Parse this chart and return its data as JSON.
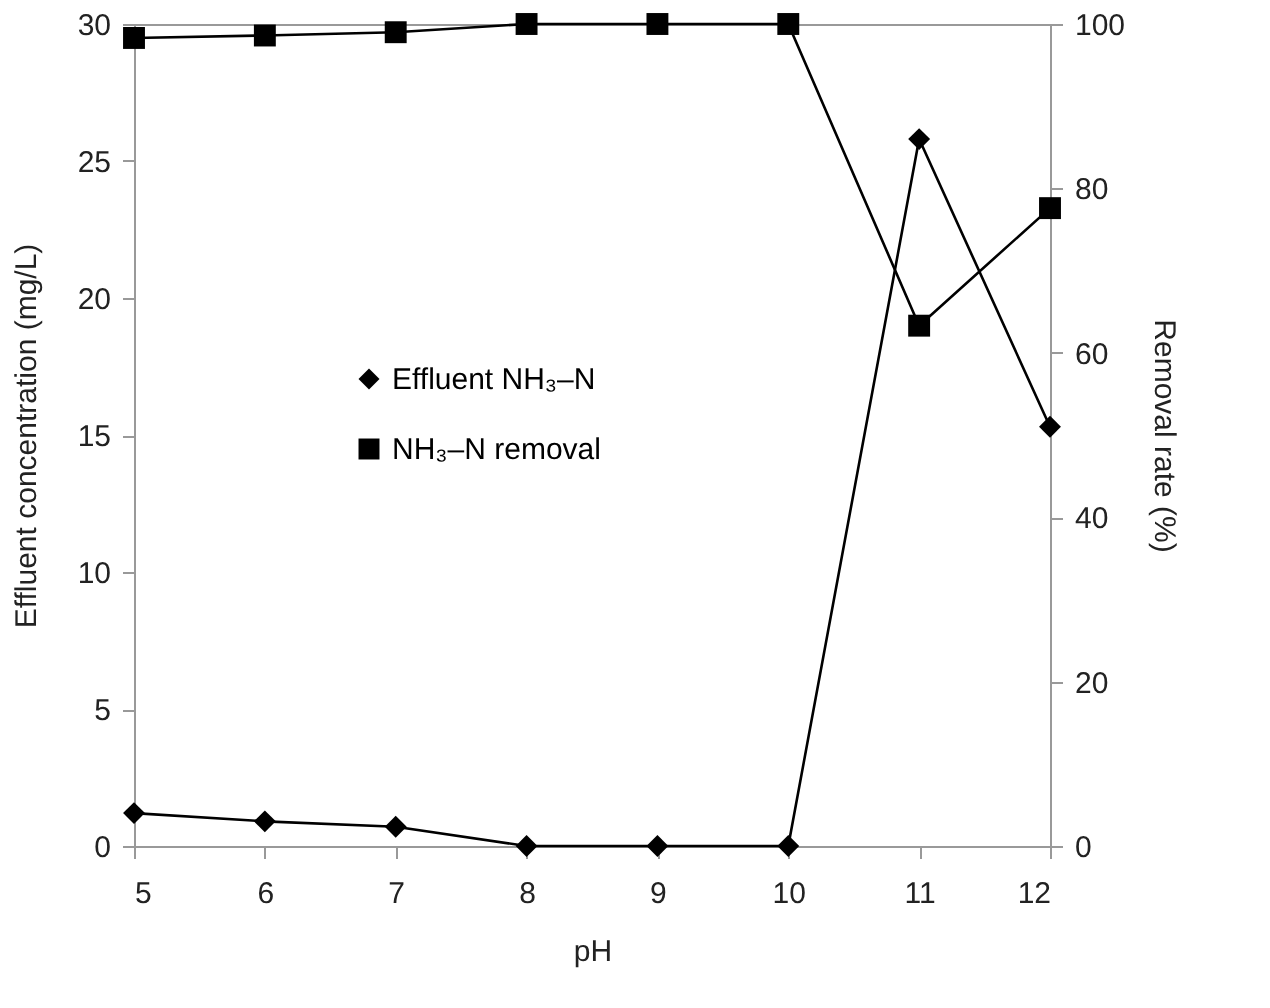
{
  "chart_data": {
    "type": "line",
    "xlabel": "pH",
    "ylabel": "Effluent concentration (mg/L)",
    "y2label": "Removal rate (%)",
    "x": [
      5,
      6,
      7,
      8,
      9,
      10,
      11,
      12
    ],
    "series": [
      {
        "name": "Effluent NH₃–N",
        "color": "#000000",
        "marker": "diamond",
        "values": [
          1.2,
          0.9,
          0.7,
          0,
          0,
          0,
          25.8,
          15.3
        ]
      },
      {
        "name": "NH₃–N removal",
        "color": "#000000",
        "marker": "square",
        "axis": "y2",
        "values": [
          98.3,
          98.6,
          99,
          100,
          100,
          100,
          63.3,
          77.6
        ]
      }
    ],
    "xlim": [
      5,
      12
    ],
    "xticks": [
      5,
      6,
      7,
      8,
      9,
      10,
      11,
      12
    ],
    "ylim": [
      0,
      30
    ],
    "yticks": [
      0,
      5,
      10,
      15,
      20,
      25,
      30
    ],
    "y2lim": [
      0,
      100
    ],
    "y2ticks": [
      0,
      20,
      40,
      60,
      80,
      100
    ],
    "grid": false,
    "legend": "left",
    "line_style": "solid"
  }
}
